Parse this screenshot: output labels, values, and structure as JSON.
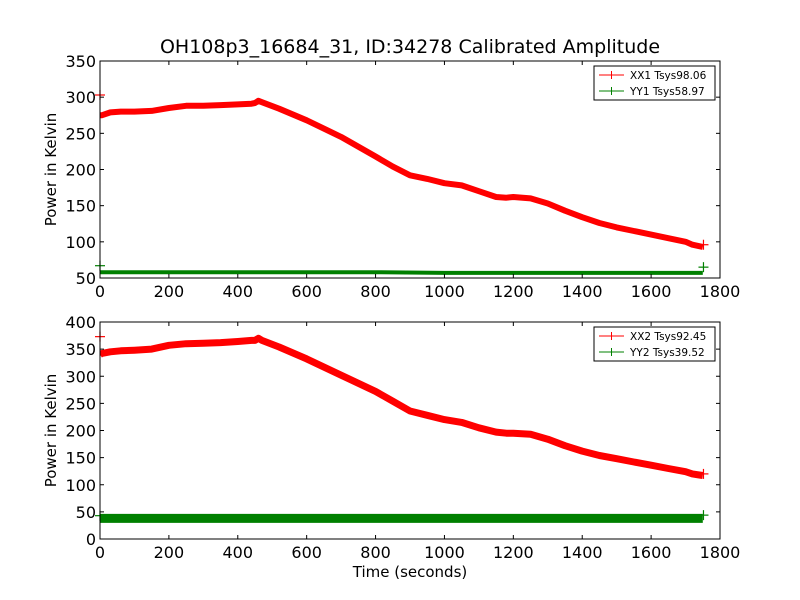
{
  "chart_data": [
    {
      "type": "line",
      "title": "OH108p3_16684_31, ID:34278 Calibrated Amplitude",
      "xlabel": "",
      "ylabel": "Power in Kelvin",
      "xlim": [
        0,
        1800
      ],
      "ylim": [
        50,
        350
      ],
      "xticks": [
        "0",
        "200",
        "400",
        "600",
        "800",
        "1000",
        "1200",
        "1400",
        "1600",
        "1800"
      ],
      "yticks": [
        "50",
        "100",
        "150",
        "200",
        "250",
        "300",
        "350"
      ],
      "legend_position": "top-right",
      "series": [
        {
          "name": "XX1 Tsys98.06",
          "color": "#ff0000",
          "marker": "+",
          "thickness": 6,
          "x": [
            0,
            5,
            30,
            60,
            100,
            150,
            200,
            250,
            300,
            350,
            400,
            440,
            450,
            460,
            470,
            520,
            600,
            700,
            800,
            850,
            900,
            950,
            1000,
            1050,
            1100,
            1150,
            1180,
            1200,
            1250,
            1300,
            1350,
            1400,
            1450,
            1500,
            1550,
            1600,
            1650,
            1700,
            1720,
            1740,
            1750
          ],
          "y": [
            275,
            275,
            279,
            280,
            280,
            281,
            285,
            288,
            288,
            289,
            290,
            291,
            292,
            295,
            293,
            284,
            268,
            245,
            218,
            204,
            192,
            187,
            181,
            178,
            170,
            162,
            161,
            162,
            160,
            153,
            143,
            134,
            126,
            120,
            115,
            110,
            105,
            100,
            96,
            94,
            93
          ]
        },
        {
          "name": "YY1 Tsys58.97",
          "color": "#008000",
          "marker": "+",
          "thickness": 4,
          "x": [
            0,
            5,
            200,
            400,
            600,
            800,
            1000,
            1200,
            1400,
            1600,
            1750
          ],
          "y": [
            58,
            58,
            58,
            58,
            58,
            58,
            57,
            57,
            57,
            57,
            57
          ]
        }
      ],
      "markers": [
        {
          "series": 0,
          "x": 0,
          "y": 303
        },
        {
          "series": 0,
          "x": 1752,
          "y": 96
        },
        {
          "series": 1,
          "x": 0,
          "y": 67
        },
        {
          "series": 1,
          "x": 1752,
          "y": 65
        }
      ]
    },
    {
      "type": "line",
      "title": "",
      "xlabel": "Time (seconds)",
      "ylabel": "Power in Kelvin",
      "xlim": [
        0,
        1800
      ],
      "ylim": [
        0,
        400
      ],
      "xticks": [
        "0",
        "200",
        "400",
        "600",
        "800",
        "1000",
        "1200",
        "1400",
        "1600",
        "1800"
      ],
      "yticks": [
        "0",
        "50",
        "100",
        "150",
        "200",
        "250",
        "300",
        "350",
        "400"
      ],
      "legend_position": "top-right",
      "series": [
        {
          "name": "XX2 Tsys92.45",
          "color": "#ff0000",
          "marker": "+",
          "thickness": 7,
          "x": [
            0,
            5,
            30,
            60,
            100,
            150,
            200,
            250,
            300,
            350,
            400,
            440,
            450,
            460,
            470,
            520,
            600,
            700,
            800,
            850,
            900,
            950,
            1000,
            1050,
            1100,
            1150,
            1180,
            1200,
            1250,
            1300,
            1350,
            1400,
            1450,
            1500,
            1550,
            1600,
            1650,
            1700,
            1720,
            1740,
            1750
          ],
          "y": [
            340,
            342,
            345,
            347,
            348,
            350,
            357,
            360,
            361,
            362,
            364,
            366,
            366,
            370,
            366,
            354,
            332,
            302,
            272,
            254,
            236,
            228,
            220,
            215,
            205,
            197,
            195,
            195,
            193,
            184,
            172,
            162,
            154,
            148,
            142,
            136,
            130,
            124,
            120,
            118,
            117
          ]
        },
        {
          "name": "YY2 Tsys39.52",
          "color": "#008000",
          "marker": "+",
          "thickness": 9,
          "x": [
            0,
            5,
            200,
            400,
            600,
            800,
            1000,
            1200,
            1400,
            1600,
            1750
          ],
          "y": [
            38,
            38,
            38,
            38,
            38,
            38,
            38,
            38,
            38,
            38,
            38
          ]
        }
      ],
      "markers": [
        {
          "series": 0,
          "x": 0,
          "y": 373
        },
        {
          "series": 0,
          "x": 1752,
          "y": 120
        },
        {
          "series": 1,
          "x": 0,
          "y": 43
        },
        {
          "series": 1,
          "x": 1752,
          "y": 44
        }
      ]
    }
  ]
}
